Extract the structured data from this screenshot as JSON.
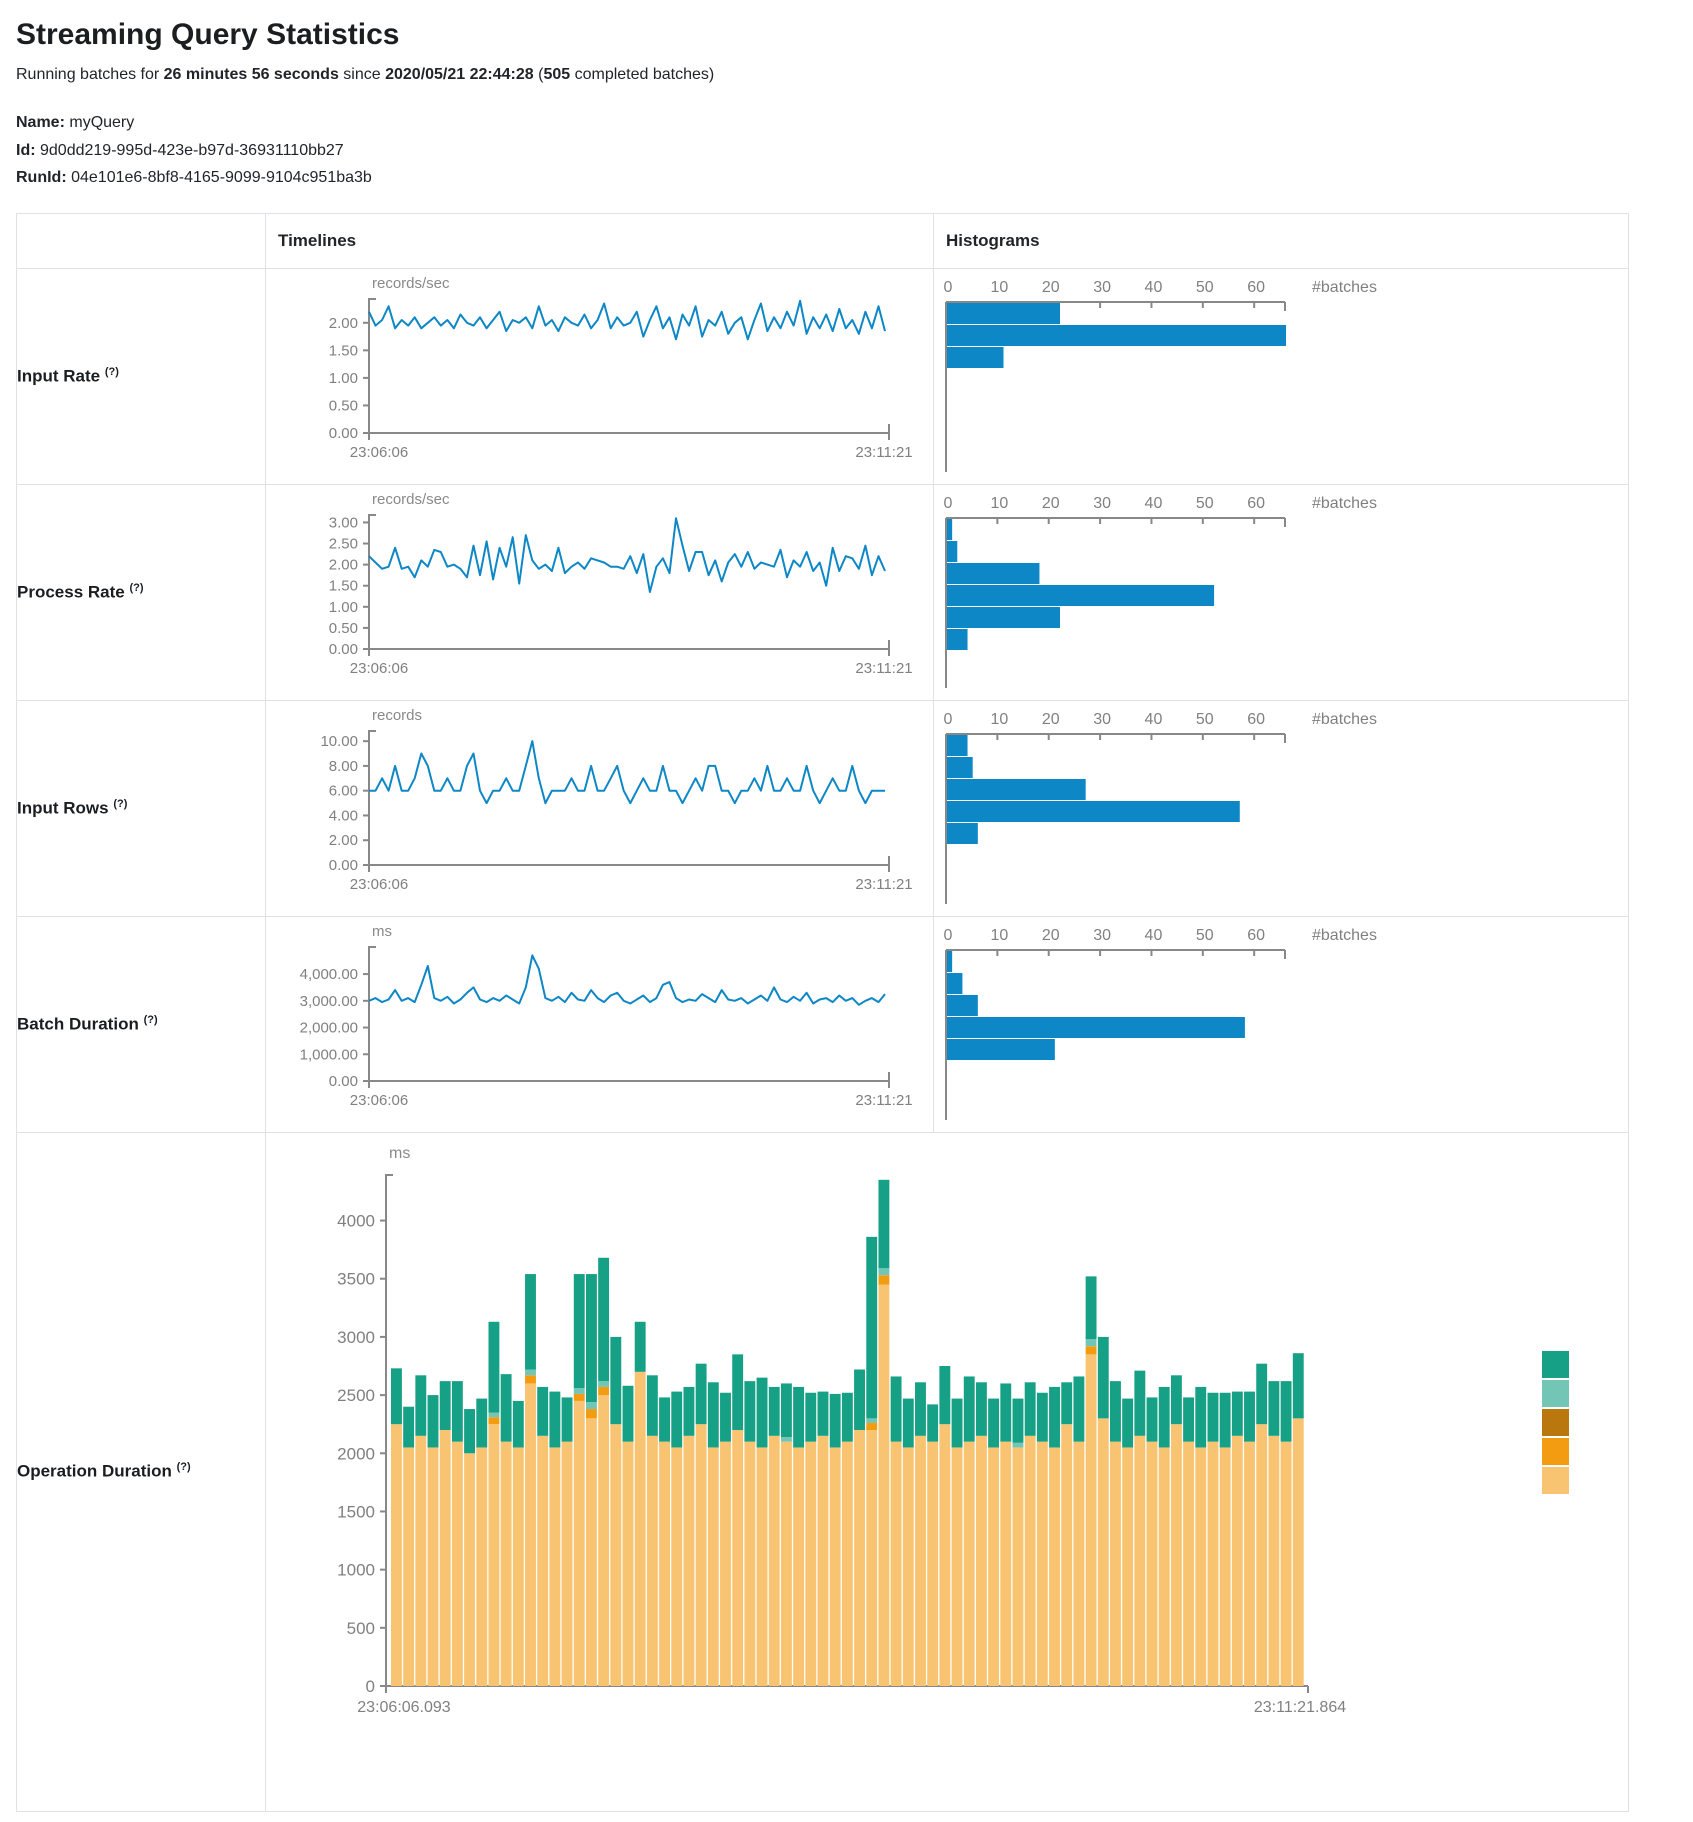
{
  "page": {
    "title": "Streaming Query Statistics",
    "subtitle": {
      "prefix": "Running batches for ",
      "duration": "26 minutes 56 seconds",
      "mid": " since ",
      "start_time": "2020/05/21 22:44:28",
      "paren": " (",
      "batch_count": "505",
      "suffix": " completed batches)"
    },
    "meta": {
      "name_label": "Name:",
      "name_value": "myQuery",
      "id_label": "Id:",
      "id_value": "9d0dd219-995d-423e-b97d-36931110bb27",
      "runid_label": "RunId:",
      "runid_value": "04e101e6-8bf8-4165-9099-9104c951ba3b"
    }
  },
  "table": {
    "headers": {
      "timelines": "Timelines",
      "histograms": "Histograms"
    },
    "rows": [
      {
        "label": "Input Rate",
        "help": "(?)"
      },
      {
        "label": "Process Rate",
        "help": "(?)"
      },
      {
        "label": "Input Rows",
        "help": "(?)"
      },
      {
        "label": "Batch Duration",
        "help": "(?)"
      },
      {
        "label": "Operation Duration",
        "help": "(?)"
      }
    ]
  },
  "colors": {
    "blue": "#0d87c6",
    "axis": "#888888",
    "tick_text": "#808080",
    "teal": "#16a085",
    "light_teal": "#73c6b6",
    "dark_orange": "#b9770e",
    "orange": "#f39c12",
    "light_orange": "#f8c471"
  },
  "chart_data": [
    {
      "id": "input-rate-timeline",
      "type": "line",
      "title": "Input Rate timeline",
      "ylabel": "records/sec",
      "ymax": 2.45,
      "yticks": [
        0,
        0.5,
        1,
        1.5,
        2
      ],
      "ytick_labels": [
        "0.00",
        "0.50",
        "1.00",
        "1.50",
        "2.00"
      ],
      "x_start_label": "23:06:06",
      "x_end_label": "23:11:21",
      "values": [
        2.2,
        1.95,
        2.05,
        2.3,
        1.9,
        2.05,
        1.95,
        2.1,
        1.9,
        2.0,
        2.1,
        1.95,
        2.05,
        1.9,
        2.15,
        2.0,
        1.95,
        2.1,
        1.9,
        2.05,
        2.2,
        1.85,
        2.05,
        2.0,
        2.1,
        1.9,
        2.3,
        1.95,
        2.05,
        1.85,
        2.1,
        2.0,
        1.95,
        2.15,
        1.9,
        2.05,
        2.35,
        1.9,
        2.1,
        1.95,
        2.0,
        2.2,
        1.75,
        2.05,
        2.3,
        1.9,
        2.1,
        1.7,
        2.15,
        1.95,
        2.3,
        1.75,
        2.05,
        1.95,
        2.2,
        1.8,
        2.0,
        2.1,
        1.7,
        2.05,
        2.35,
        1.85,
        2.1,
        1.9,
        2.2,
        1.95,
        2.4,
        1.8,
        2.1,
        1.9,
        2.15,
        1.85,
        2.25,
        1.9,
        2.05,
        1.8,
        2.2,
        1.9,
        2.3,
        1.85
      ]
    },
    {
      "id": "input-rate-histogram",
      "type": "hbar",
      "title": "Input Rate histogram",
      "xticks": [
        0,
        10,
        20,
        30,
        40,
        50,
        60
      ],
      "xmax": 66,
      "end_label": "#batches",
      "values": [
        22,
        66,
        11
      ]
    },
    {
      "id": "process-rate-timeline",
      "type": "line",
      "title": "Process Rate timeline",
      "ylabel": "records/sec",
      "ymax": 3.2,
      "yticks": [
        0,
        0.5,
        1,
        1.5,
        2,
        2.5,
        3
      ],
      "ytick_labels": [
        "0.00",
        "0.50",
        "1.00",
        "1.50",
        "2.00",
        "2.50",
        "3.00"
      ],
      "x_start_label": "23:06:06",
      "x_end_label": "23:11:21",
      "values": [
        2.2,
        2.05,
        1.9,
        1.95,
        2.4,
        1.9,
        1.95,
        1.7,
        2.1,
        1.95,
        2.35,
        2.3,
        1.95,
        2.0,
        1.9,
        1.7,
        2.45,
        1.75,
        2.55,
        1.65,
        2.4,
        1.95,
        2.65,
        1.55,
        2.7,
        2.1,
        1.9,
        2.0,
        1.85,
        2.4,
        1.8,
        1.95,
        2.05,
        1.9,
        2.15,
        2.1,
        2.05,
        1.95,
        1.95,
        1.9,
        2.2,
        1.8,
        2.25,
        1.35,
        1.95,
        2.15,
        1.8,
        3.1,
        2.45,
        1.85,
        2.3,
        2.3,
        1.75,
        2.1,
        1.6,
        2.05,
        2.25,
        1.95,
        2.3,
        1.9,
        2.05,
        2.0,
        1.95,
        2.35,
        1.7,
        2.1,
        1.95,
        2.3,
        1.85,
        2.05,
        1.5,
        2.4,
        1.85,
        2.2,
        2.15,
        1.9,
        2.45,
        1.75,
        2.2,
        1.85
      ]
    },
    {
      "id": "process-rate-histogram",
      "type": "hbar",
      "title": "Process Rate histogram",
      "xticks": [
        0,
        10,
        20,
        30,
        40,
        50,
        60
      ],
      "xmax": 66,
      "end_label": "#batches",
      "values": [
        1,
        2,
        18,
        52,
        22,
        4
      ]
    },
    {
      "id": "input-rows-timeline",
      "type": "line",
      "title": "Input Rows timeline",
      "ylabel": "records",
      "ymax": 10.9,
      "yticks": [
        0,
        2,
        4,
        6,
        8,
        10
      ],
      "ytick_labels": [
        "0.00",
        "2.00",
        "4.00",
        "6.00",
        "8.00",
        "10.00"
      ],
      "x_start_label": "23:06:06",
      "x_end_label": "23:11:21",
      "values": [
        6,
        6,
        7,
        6,
        8,
        6,
        6,
        7,
        9,
        8,
        6,
        6,
        7,
        6,
        6,
        8,
        9,
        6,
        5,
        6,
        6,
        7,
        6,
        6,
        8,
        10,
        7,
        5,
        6,
        6,
        6,
        7,
        6,
        6,
        8,
        6,
        6,
        7,
        8,
        6,
        5,
        6,
        7,
        6,
        6,
        8,
        6,
        6,
        5,
        6,
        7,
        6,
        8,
        8,
        6,
        6,
        5,
        6,
        6,
        7,
        6,
        8,
        6,
        6,
        7,
        6,
        6,
        8,
        6,
        5,
        6,
        7,
        6,
        6,
        8,
        6,
        5,
        6,
        6,
        6
      ]
    },
    {
      "id": "input-rows-histogram",
      "type": "hbar",
      "title": "Input Rows histogram",
      "xticks": [
        0,
        10,
        20,
        30,
        40,
        50,
        60
      ],
      "xmax": 66,
      "end_label": "#batches",
      "values": [
        4,
        5,
        27,
        57,
        6
      ]
    },
    {
      "id": "batch-duration-timeline",
      "type": "line",
      "title": "Batch Duration timeline",
      "ylabel": "ms",
      "ymax": 5050,
      "yticks": [
        0,
        1000,
        2000,
        3000,
        4000
      ],
      "ytick_labels": [
        "0.00",
        "1,000.00",
        "2,000.00",
        "3,000.00",
        "4,000.00"
      ],
      "x_start_label": "23:06:06",
      "x_end_label": "23:11:21",
      "values": [
        3000,
        3100,
        2950,
        3050,
        3400,
        3000,
        3100,
        2950,
        3600,
        4300,
        3100,
        3000,
        3150,
        2900,
        3050,
        3300,
        3500,
        3050,
        2950,
        3100,
        3000,
        3200,
        3050,
        2900,
        3500,
        4700,
        4200,
        3100,
        3000,
        3150,
        2950,
        3300,
        3050,
        3000,
        3400,
        3100,
        2950,
        3200,
        3300,
        3000,
        2900,
        3050,
        3200,
        2950,
        3100,
        3600,
        3700,
        3100,
        2950,
        3050,
        3000,
        3250,
        3100,
        2950,
        3400,
        3050,
        3000,
        3100,
        2900,
        3050,
        3200,
        3000,
        3500,
        3050,
        2950,
        3150,
        3000,
        3300,
        2900,
        3050,
        3100,
        2950,
        3200,
        3000,
        3100,
        2850,
        3000,
        3100,
        2950,
        3250
      ]
    },
    {
      "id": "batch-duration-histogram",
      "type": "hbar",
      "title": "Batch Duration histogram",
      "xticks": [
        0,
        10,
        20,
        30,
        40,
        50,
        60
      ],
      "xmax": 66,
      "end_label": "#batches",
      "values": [
        1,
        3,
        6,
        58,
        21
      ]
    },
    {
      "id": "operation-duration",
      "type": "stacked",
      "title": "Operation Duration timeline",
      "ylabel": "ms",
      "ymax": 4400,
      "yticks": [
        0,
        500,
        1000,
        1500,
        2000,
        2500,
        3000,
        3500,
        4000
      ],
      "ytick_labels": [
        "0",
        "500",
        "1000",
        "1500",
        "2000",
        "2500",
        "3000",
        "3500",
        "4000"
      ],
      "x_start_label": "23:06:06.093",
      "x_end_label": "23:11:21.864",
      "series": [
        {
          "name": "light-orange",
          "color": "#f8c471",
          "values": [
            2250,
            2050,
            2150,
            2050,
            2200,
            2100,
            2000,
            2050,
            2250,
            2100,
            2050,
            2600,
            2150,
            2050,
            2100,
            2450,
            2300,
            2500,
            2250,
            2100,
            2700,
            2150,
            2100,
            2050,
            2150,
            2250,
            2050,
            2100,
            2200,
            2100,
            2050,
            2150,
            2100,
            2050,
            2100,
            2150,
            2050,
            2100,
            2200,
            2200,
            3450,
            2100,
            2050,
            2150,
            2100,
            2250,
            2050,
            2100,
            2150,
            2050,
            2100,
            2050,
            2150,
            2100,
            2050,
            2250,
            2100,
            2850,
            2300,
            2100,
            2050,
            2150,
            2100,
            2050,
            2250,
            2100,
            2050,
            2100,
            2050,
            2150,
            2100,
            2250,
            2150,
            2100,
            2300
          ]
        },
        {
          "name": "orange",
          "color": "#f39c12",
          "values": [
            0,
            0,
            0,
            0,
            0,
            0,
            0,
            0,
            60,
            0,
            0,
            70,
            0,
            0,
            0,
            60,
            80,
            70,
            0,
            0,
            0,
            0,
            0,
            0,
            0,
            0,
            0,
            0,
            0,
            0,
            0,
            0,
            0,
            0,
            0,
            0,
            0,
            0,
            0,
            60,
            80,
            0,
            0,
            0,
            0,
            0,
            0,
            0,
            0,
            0,
            0,
            0,
            0,
            0,
            0,
            0,
            0,
            70,
            0,
            0,
            0,
            0,
            0,
            0,
            0,
            0,
            0,
            0,
            0,
            0,
            0,
            0,
            0,
            0,
            0
          ]
        },
        {
          "name": "light-teal",
          "color": "#73c6b6",
          "values": [
            0,
            0,
            0,
            0,
            0,
            0,
            0,
            0,
            40,
            0,
            0,
            50,
            0,
            0,
            0,
            50,
            60,
            50,
            0,
            0,
            0,
            0,
            0,
            0,
            0,
            0,
            0,
            0,
            0,
            0,
            0,
            0,
            40,
            0,
            0,
            0,
            0,
            0,
            0,
            40,
            60,
            0,
            0,
            0,
            0,
            0,
            0,
            0,
            0,
            0,
            0,
            40,
            0,
            0,
            0,
            0,
            0,
            60,
            0,
            0,
            0,
            0,
            0,
            0,
            0,
            0,
            0,
            0,
            0,
            0,
            0,
            0,
            0,
            0,
            0
          ]
        },
        {
          "name": "teal",
          "color": "#16a085",
          "values": [
            480,
            350,
            520,
            450,
            420,
            520,
            380,
            420,
            780,
            580,
            400,
            820,
            420,
            480,
            380,
            980,
            1100,
            1060,
            750,
            480,
            430,
            520,
            380,
            480,
            420,
            520,
            560,
            420,
            650,
            520,
            600,
            420,
            460,
            520,
            420,
            380,
            460,
            420,
            520,
            1560,
            760,
            560,
            420,
            460,
            320,
            500,
            420,
            560,
            460,
            420,
            500,
            380,
            460,
            420,
            520,
            360,
            560,
            540,
            700,
            520,
            420,
            560,
            380,
            520,
            420,
            380,
            520,
            420,
            470,
            380,
            430,
            520,
            470,
            520,
            560
          ]
        }
      ],
      "legend_colors": [
        "#16a085",
        "#73c6b6",
        "#b9770e",
        "#f39c12",
        "#f8c471"
      ]
    }
  ]
}
